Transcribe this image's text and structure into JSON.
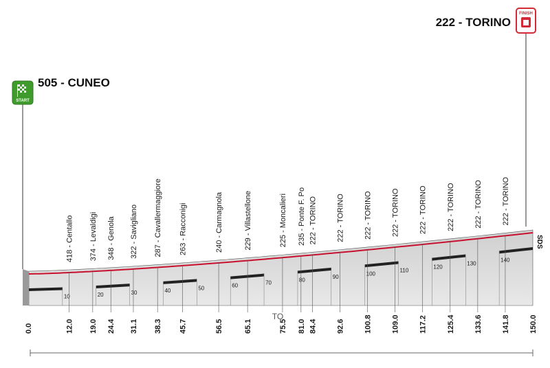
{
  "start": {
    "altitude": "505",
    "name": "CUNEO",
    "label": "505 - CUNEO",
    "badge": "START"
  },
  "finish": {
    "altitude": "222",
    "name": "TORINO",
    "label": "222 - TORINO",
    "badge": "FINISH"
  },
  "midline_label": "TO",
  "sds_label": "SDS",
  "colors": {
    "road": "#c8102e",
    "profile_fill": "#d9d9d9",
    "start_badge": "#3f9b2b",
    "finish_badge": "#d42a35"
  },
  "chart_data": {
    "type": "area",
    "xlim": [
      0,
      150
    ],
    "elevation_profile": [
      {
        "km": 0,
        "alt": 505
      },
      {
        "km": 12.0,
        "alt": 418
      },
      {
        "km": 19.0,
        "alt": 374
      },
      {
        "km": 24.4,
        "alt": 348
      },
      {
        "km": 31.1,
        "alt": 322
      },
      {
        "km": 38.3,
        "alt": 287
      },
      {
        "km": 45.7,
        "alt": 263
      },
      {
        "km": 56.5,
        "alt": 240
      },
      {
        "km": 65.1,
        "alt": 229
      },
      {
        "km": 75.5,
        "alt": 225
      },
      {
        "km": 81.0,
        "alt": 235
      },
      {
        "km": 84.4,
        "alt": 222
      },
      {
        "km": 92.6,
        "alt": 222
      },
      {
        "km": 100.8,
        "alt": 222
      },
      {
        "km": 109.0,
        "alt": 222
      },
      {
        "km": 117.2,
        "alt": 222
      },
      {
        "km": 125.4,
        "alt": 222
      },
      {
        "km": 133.6,
        "alt": 222
      },
      {
        "km": 141.8,
        "alt": 222
      },
      {
        "km": 150.0,
        "alt": 222
      }
    ],
    "waypoints": [
      {
        "km": "12.0",
        "label": "418 - Centallo"
      },
      {
        "km": "19.0",
        "label": "374 - Levaldigi"
      },
      {
        "km": "24.4",
        "label": "348 - Genola"
      },
      {
        "km": "31.1",
        "label": "322 - Savigliano"
      },
      {
        "km": "38.3",
        "label": "287 - Cavallermaggiore"
      },
      {
        "km": "45.7",
        "label": "263 - Racconigi"
      },
      {
        "km": "56.5",
        "label": "240 - Carmagnola"
      },
      {
        "km": "65.1",
        "label": "229 - Villastellone"
      },
      {
        "km": "75.5",
        "label": "225 - Moncalieri"
      },
      {
        "km": "81.0",
        "label": "235 - Ponte F. Po"
      },
      {
        "km": "84.4",
        "label": "222 - TORINO"
      },
      {
        "km": "92.6",
        "label": "222 - TORINO"
      },
      {
        "km": "100.8",
        "label": "222 - TORINO"
      },
      {
        "km": "109.0",
        "label": "222 - TORINO"
      },
      {
        "km": "117.2",
        "label": "222 - TORINO"
      },
      {
        "km": "125.4",
        "label": "222 - TORINO"
      },
      {
        "km": "133.6",
        "label": "222 - TORINO"
      },
      {
        "km": "141.8",
        "label": "222 - TORINO"
      }
    ],
    "km_start_label": "0.0",
    "km_end_label": "150.0",
    "ticks": [
      10,
      20,
      30,
      40,
      50,
      60,
      70,
      80,
      90,
      100,
      110,
      120,
      130,
      140
    ]
  }
}
